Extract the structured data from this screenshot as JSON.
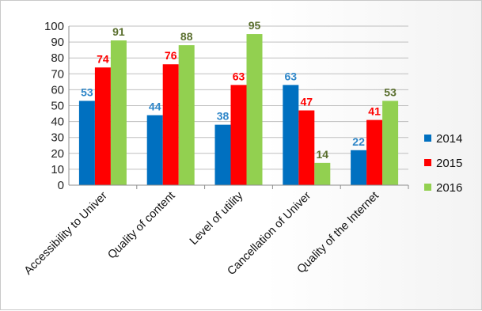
{
  "chart_data": {
    "type": "bar",
    "categories": [
      "Accessibility to Univer",
      "Quality of content",
      "Level of utility",
      "Cancellation of Univer",
      "Quality of the Internet"
    ],
    "series": [
      {
        "name": "2014",
        "color": "#0070c0",
        "label_color": "#2e86c8",
        "values": [
          53,
          44,
          38,
          63,
          22
        ]
      },
      {
        "name": "2015",
        "color": "#ff0000",
        "label_color": "#ff0000",
        "values": [
          74,
          76,
          63,
          47,
          41
        ]
      },
      {
        "name": "2016",
        "color": "#92d050",
        "label_color": "#5a6f2e",
        "values": [
          91,
          88,
          95,
          14,
          53
        ]
      }
    ],
    "ylim": [
      0,
      100
    ],
    "yticks": [
      "0",
      "10",
      "20",
      "30",
      "40",
      "50",
      "60",
      "70",
      "80",
      "90",
      "100"
    ],
    "grid": true,
    "legend_position": "right",
    "title": "",
    "xlabel": "",
    "ylabel": ""
  }
}
